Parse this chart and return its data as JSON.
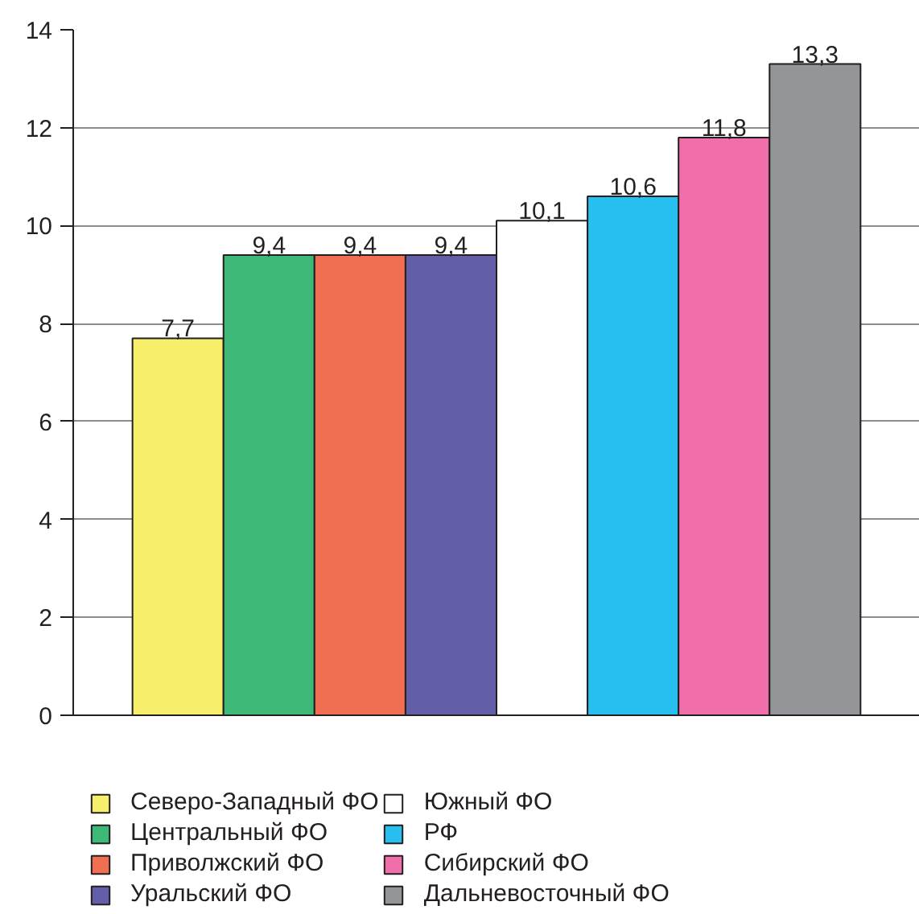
{
  "chart_data": {
    "type": "bar",
    "categories": [
      null
    ],
    "series": [
      {
        "name": "Северо-Западный ФО",
        "color": "#f7ef6c",
        "values": [
          7.7
        ],
        "value_labels": [
          "7,7"
        ]
      },
      {
        "name": "Центральный ФО",
        "color": "#3db877",
        "values": [
          9.4
        ],
        "value_labels": [
          "9,4"
        ]
      },
      {
        "name": "Приволжский ФО",
        "color": "#f06e52",
        "values": [
          9.4
        ],
        "value_labels": [
          "9,4"
        ]
      },
      {
        "name": "Уральский ФО",
        "color": "#625ea8",
        "values": [
          9.4
        ],
        "value_labels": [
          "9,4"
        ]
      },
      {
        "name": "Южный ФО",
        "color": "#ffffff",
        "values": [
          10.1
        ],
        "value_labels": [
          "10,1"
        ]
      },
      {
        "name": "РФ",
        "color": "#26bff0",
        "values": [
          10.6
        ],
        "value_labels": [
          "10,6"
        ]
      },
      {
        "name": "Сибирский ФО",
        "color": "#f06fab",
        "values": [
          11.8
        ],
        "value_labels": [
          "11,8"
        ]
      },
      {
        "name": "Дальневосточный ФО",
        "color": "#949598",
        "values": [
          13.3
        ],
        "value_labels": [
          "13,3"
        ]
      }
    ],
    "ylim": [
      0,
      14
    ],
    "yticks": [
      0,
      2,
      4,
      6,
      8,
      10,
      12,
      14
    ],
    "grid": "y",
    "legend": "bottom"
  }
}
